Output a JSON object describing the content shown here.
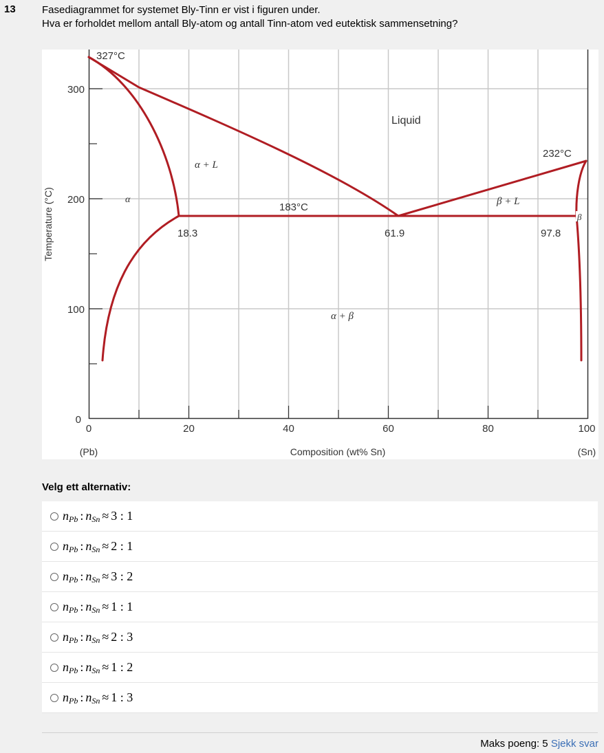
{
  "question": {
    "number": "13",
    "line1": "Fasediagrammet for systemet Bly-Tinn er vist i figuren under.",
    "line2": "Hva er forholdet mellom antall Bly-atom og antall Tinn-atom ved eutektisk sammensetning?"
  },
  "diagram": {
    "y_axis_label": "Temperature (°C)",
    "x_axis_label": "Composition (wt% Sn)",
    "x_left_label": "(Pb)",
    "x_right_label": "(Sn)",
    "x_ticks": [
      "0",
      "20",
      "40",
      "60",
      "80",
      "100"
    ],
    "y_ticks": [
      "0",
      "100",
      "200",
      "300"
    ],
    "pb_melting": "327°C",
    "sn_melting": "232°C",
    "eutectic_temp": "183°C",
    "comp_alpha": "18.3",
    "comp_eutectic": "61.9",
    "comp_beta": "97.8",
    "regions": {
      "liquid": "Liquid",
      "alpha_liquid": "α + L",
      "beta_liquid": "β + L",
      "alpha_beta": "α + β",
      "alpha": "α",
      "beta": "β"
    },
    "line_color": "#b01d23"
  },
  "prompt": "Velg ett alternativ:",
  "options": [
    {
      "var1": "n",
      "sub1": "Pb",
      "var2": "n",
      "sub2": "Sn",
      "ratio": "3 : 1"
    },
    {
      "var1": "n",
      "sub1": "Pb",
      "var2": "n",
      "sub2": "Sn",
      "ratio": "2 : 1"
    },
    {
      "var1": "n",
      "sub1": "Pb",
      "var2": "n",
      "sub2": "Sn",
      "ratio": "3 : 2"
    },
    {
      "var1": "n",
      "sub1": "Pb",
      "var2": "n",
      "sub2": "Sn",
      "ratio": "1 : 1"
    },
    {
      "var1": "n",
      "sub1": "Pb",
      "var2": "n",
      "sub2": "Sn",
      "ratio": "2 : 3"
    },
    {
      "var1": "n",
      "sub1": "Pb",
      "var2": "n",
      "sub2": "Sn",
      "ratio": "1 : 2"
    },
    {
      "var1": "n",
      "sub1": "Pb",
      "var2": "n",
      "sub2": "Sn",
      "ratio": "1 : 3"
    }
  ],
  "footer": {
    "points_label": "Maks poeng: 5",
    "check_link": "Sjekk svar"
  }
}
